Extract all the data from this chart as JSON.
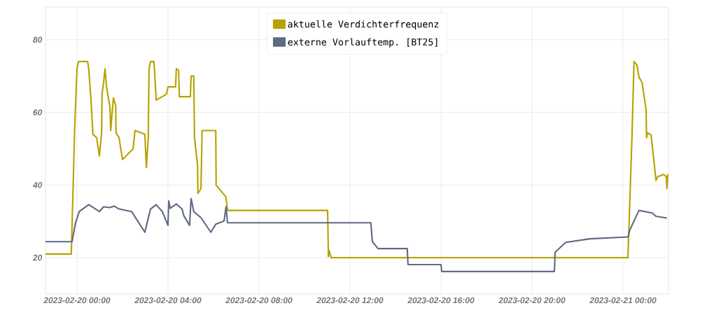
{
  "chart_data": {
    "type": "line",
    "xlim": [
      "2023-02-19T22:37",
      "2023-02-21T02:00"
    ],
    "ylim": [
      10,
      89
    ],
    "xticks": [
      {
        "value": "2023-02-20T00:00",
        "label": "2023-02-20 00:00"
      },
      {
        "value": "2023-02-20T04:00",
        "label": "2023-02-20 04:00"
      },
      {
        "value": "2023-02-20T08:00",
        "label": "2023-02-20 08:00"
      },
      {
        "value": "2023-02-20T12:00",
        "label": "2023-02-20 12:00"
      },
      {
        "value": "2023-02-20T16:00",
        "label": "2023-02-20 16:00"
      },
      {
        "value": "2023-02-20T20:00",
        "label": "2023-02-20 20:00"
      },
      {
        "value": "2023-02-21T00:00",
        "label": "2023-02-21 00:00"
      }
    ],
    "yticks": [
      20,
      40,
      60,
      80
    ],
    "grid": true,
    "legend": "top",
    "marker": "none",
    "line_style": "solid",
    "series": [
      {
        "name": "aktuelle Verdichterfrequenz",
        "color": "#b8a200",
        "x": [
          "2023-02-19T22:37",
          "2023-02-19T23:45",
          "2023-02-19T23:54",
          "2023-02-20T00:00",
          "2023-02-20T00:04",
          "2023-02-20T00:28",
          "2023-02-20T00:31",
          "2023-02-20T00:37",
          "2023-02-20T00:42",
          "2023-02-20T00:52",
          "2023-02-20T00:59",
          "2023-02-20T01:05",
          "2023-02-20T01:06",
          "2023-02-20T01:10",
          "2023-02-20T01:14",
          "2023-02-20T01:18",
          "2023-02-20T01:27",
          "2023-02-20T01:29",
          "2023-02-20T01:36",
          "2023-02-20T01:42",
          "2023-02-20T01:43",
          "2023-02-20T01:51",
          "2023-02-20T02:00",
          "2023-02-20T02:28",
          "2023-02-20T02:33",
          "2023-02-20T02:59",
          "2023-02-20T03:03",
          "2023-02-20T03:08",
          "2023-02-20T03:10",
          "2023-02-20T03:14",
          "2023-02-20T03:23",
          "2023-02-20T03:29",
          "2023-02-20T03:56",
          "2023-02-20T04:00",
          "2023-02-20T04:20",
          "2023-02-20T04:22",
          "2023-02-20T04:28",
          "2023-02-20T04:30",
          "2023-02-20T04:59",
          "2023-02-20T05:01",
          "2023-02-20T05:08",
          "2023-02-20T05:10",
          "2023-02-20T05:18",
          "2023-02-20T05:19",
          "2023-02-20T05:27",
          "2023-02-20T05:30",
          "2023-02-20T06:06",
          "2023-02-20T06:07",
          "2023-02-20T06:33",
          "2023-02-20T06:37",
          "2023-02-20T11:01",
          "2023-02-20T11:03",
          "2023-02-20T11:05",
          "2023-02-20T11:10",
          "2023-02-21T00:13",
          "2023-02-21T00:24",
          "2023-02-21T00:29",
          "2023-02-21T00:37",
          "2023-02-21T00:42",
          "2023-02-21T00:50",
          "2023-02-21T01:01",
          "2023-02-21T01:02",
          "2023-02-21T01:05",
          "2023-02-21T01:14",
          "2023-02-21T01:27",
          "2023-02-21T01:32",
          "2023-02-21T01:47",
          "2023-02-21T01:54",
          "2023-02-21T01:56",
          "2023-02-21T01:58"
        ],
        "values": [
          21,
          21,
          55.7,
          72,
          74,
          74,
          72,
          63.4,
          54,
          53,
          48,
          54.4,
          65,
          68,
          72,
          67,
          61.4,
          55,
          64,
          62,
          54.4,
          53,
          47,
          50,
          55,
          54,
          44.8,
          53,
          72,
          74,
          74,
          63.4,
          65,
          67,
          67,
          72,
          71.6,
          64.3,
          64.3,
          70,
          70,
          53,
          45.4,
          37.7,
          39,
          55,
          55,
          40,
          36.7,
          33,
          33,
          20.3,
          22,
          20,
          20,
          54.4,
          74,
          73,
          69.7,
          68.3,
          60.7,
          53,
          54.4,
          53.8,
          41.3,
          42.3,
          42.9,
          42.3,
          39,
          43
        ]
      },
      {
        "name": "externe Vorlauftemp. [BT25]",
        "color": "#5f6a85",
        "x": [
          "2023-02-19T22:37",
          "2023-02-19T23:47",
          "2023-02-19T23:56",
          "2023-02-20T00:06",
          "2023-02-20T00:31",
          "2023-02-20T00:59",
          "2023-02-20T01:10",
          "2023-02-20T01:27",
          "2023-02-20T01:38",
          "2023-02-20T01:51",
          "2023-02-20T02:24",
          "2023-02-20T02:59",
          "2023-02-20T03:14",
          "2023-02-20T03:29",
          "2023-02-20T03:45",
          "2023-02-20T04:00",
          "2023-02-20T04:02",
          "2023-02-20T04:06",
          "2023-02-20T04:22",
          "2023-02-20T04:37",
          "2023-02-20T04:42",
          "2023-02-20T04:57",
          "2023-02-20T05:01",
          "2023-02-20T05:08",
          "2023-02-20T05:27",
          "2023-02-20T05:53",
          "2023-02-20T06:06",
          "2023-02-20T06:28",
          "2023-02-20T06:33",
          "2023-02-20T06:37",
          "2023-02-20T12:55",
          "2023-02-20T12:59",
          "2023-02-20T13:14",
          "2023-02-20T14:31",
          "2023-02-20T14:33",
          "2023-02-20T16:00",
          "2023-02-20T16:02",
          "2023-02-20T20:59",
          "2023-02-20T21:01",
          "2023-02-20T21:29",
          "2023-02-20T22:33",
          "2023-02-21T00:13",
          "2023-02-21T00:18",
          "2023-02-21T00:42",
          "2023-02-21T01:17",
          "2023-02-21T01:27",
          "2023-02-21T01:56"
        ],
        "values": [
          24.4,
          24.4,
          29.5,
          32.7,
          34.6,
          32.7,
          34,
          33.8,
          34.2,
          33.4,
          32.7,
          27,
          33.4,
          34.6,
          32.7,
          28.9,
          35.6,
          33.6,
          34.8,
          33.4,
          31.5,
          28.9,
          36.3,
          32.7,
          31,
          27,
          29.2,
          30.1,
          34,
          29.6,
          29.6,
          24.4,
          22.5,
          22.5,
          18.1,
          18.1,
          16.2,
          16.2,
          21.5,
          24.2,
          25.2,
          25.7,
          27.6,
          33,
          32.3,
          31.4,
          30.9
        ]
      }
    ]
  }
}
